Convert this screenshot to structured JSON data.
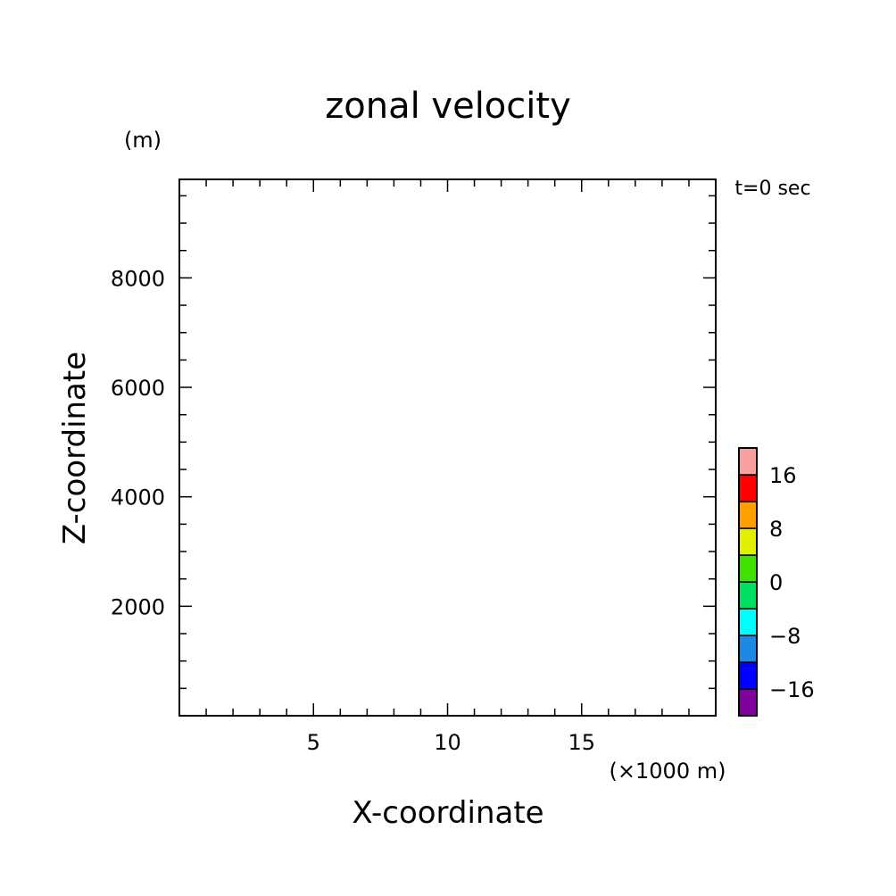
{
  "chart_data": {
    "type": "heatmap",
    "title": "zonal velocity",
    "time_label": "t=0 sec",
    "xlabel": "X-coordinate",
    "x_unit": "(×1000 m)",
    "ylabel": "Z-coordinate",
    "y_unit": "(m)",
    "xlim": [
      0,
      20
    ],
    "ylim": [
      0,
      9800
    ],
    "x_major_ticks": [
      5,
      10,
      15
    ],
    "x_tick_labels": [
      "5",
      "10",
      "15"
    ],
    "x_minor_step": 1,
    "y_major_ticks": [
      2000,
      4000,
      6000,
      8000
    ],
    "y_tick_labels": [
      "2000",
      "4000",
      "6000",
      "8000"
    ],
    "y_minor_step": 500,
    "grid": false,
    "data": [],
    "colorbar": {
      "levels": [
        -20,
        -16,
        -12,
        -8,
        -4,
        0,
        4,
        8,
        12,
        16,
        20
      ],
      "colors": [
        "#8000a0",
        "#0000ff",
        "#1e88e5",
        "#00ffff",
        "#00e060",
        "#40e000",
        "#e0f000",
        "#ffa000",
        "#ff0000",
        "#f8a0a0"
      ],
      "tick_values": [
        -16,
        -8,
        0,
        8,
        16
      ],
      "tick_labels": [
        "−16",
        "−8",
        "0",
        "8",
        "16"
      ]
    }
  }
}
